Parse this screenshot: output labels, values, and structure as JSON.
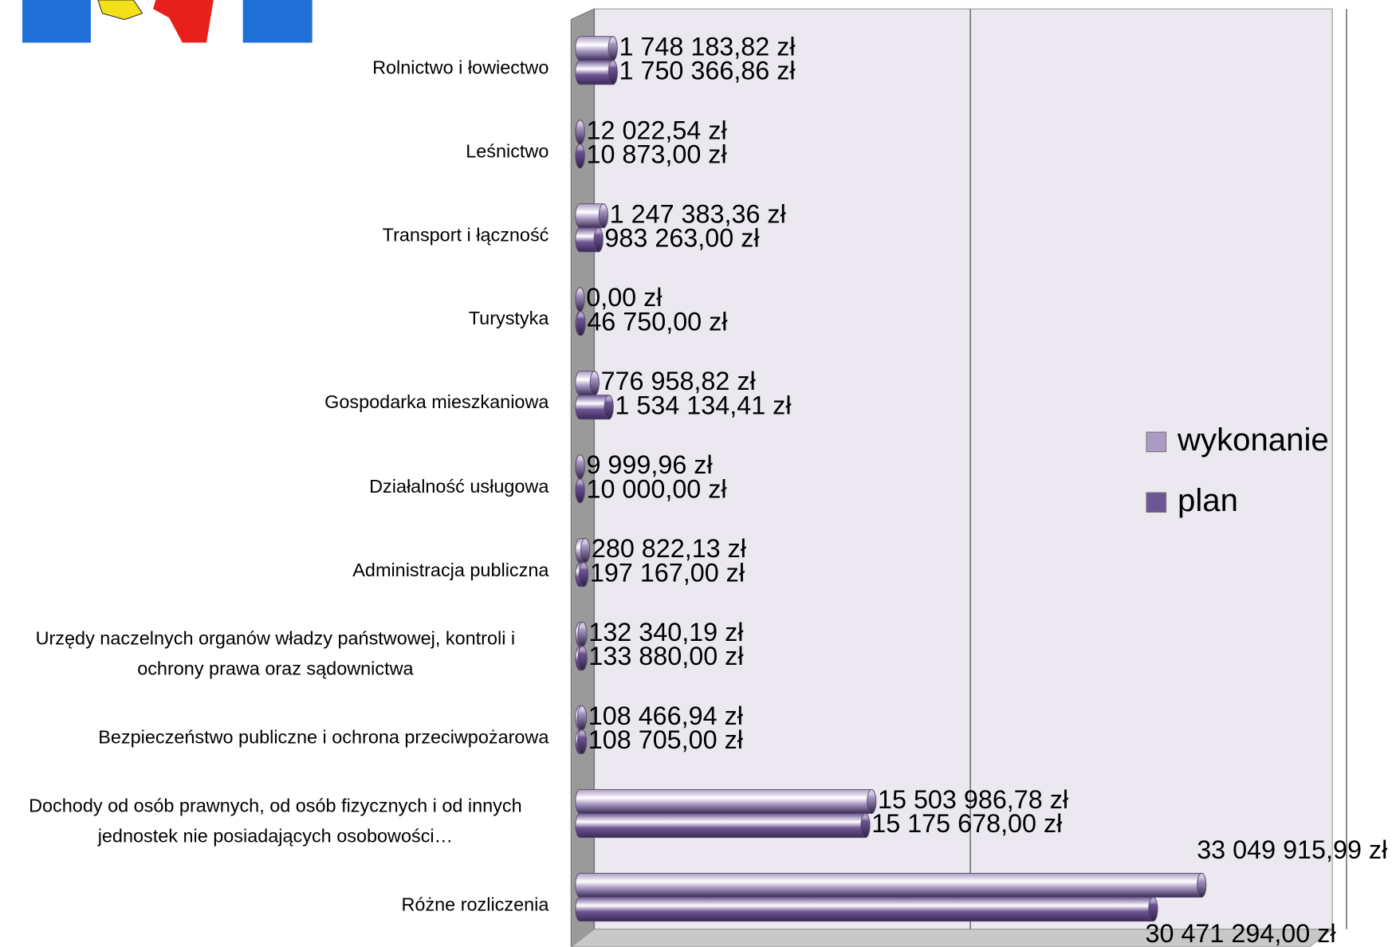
{
  "chart_data": {
    "type": "bar",
    "orientation": "horizontal",
    "categories": [
      "Rolnictwo i łowiectwo",
      "Leśnictwo",
      "Transport i łączność",
      "Turystyka",
      "Gospodarka mieszkaniowa",
      "Działalność usługowa",
      "Administracja publiczna",
      "Urzędy naczelnych organów władzy państwowej, kontroli i ochrony prawa oraz sądownictwa",
      "Bezpieczeństwo publiczne i ochrona przeciwpożarowa",
      "Dochody od osób prawnych, od osób fizycznych i od innych jednostek nie posiadających osobowości…",
      "Różne rozliczenia"
    ],
    "series": [
      {
        "name": "wykonanie",
        "color": "#a99bc4",
        "values": [
          1748183.82,
          12022.54,
          1247383.36,
          0,
          776958.82,
          9999.96,
          280822.13,
          132340.19,
          108466.94,
          15503986.78,
          33049915.99
        ],
        "value_labels": [
          "1 748 183,82 zł",
          "12 022,54 zł",
          "1 247 383,36 zł",
          "0,00 zł",
          "776 958,82 zł",
          "9 999,96 zł",
          "280 822,13 zł",
          "132 340,19 zł",
          "108 466,94 zł",
          "15 503 986,78 zł",
          "33 049 915,99 zł"
        ]
      },
      {
        "name": "plan",
        "color": "#6e5596",
        "values": [
          1750366.86,
          10873,
          983263,
          46750,
          1534134.41,
          10000,
          197167,
          133880,
          108705,
          15175678,
          30471294
        ],
        "value_labels": [
          "1 750 366,86 zł",
          "10 873,00 zł",
          "983 263,00 zł",
          "46 750,00 zł",
          "1 534 134,41 zł",
          "10 000,00 zł",
          "197 167,00 zł",
          "133 880,00 zł",
          "108 705,00 zł",
          "15 175 678,00 zł",
          "30 471 294,00 zł"
        ]
      }
    ],
    "xlim": [
      0,
      40000000
    ],
    "xticks": [
      0,
      20000000,
      40000000
    ],
    "grid": true,
    "legend": "right"
  }
}
